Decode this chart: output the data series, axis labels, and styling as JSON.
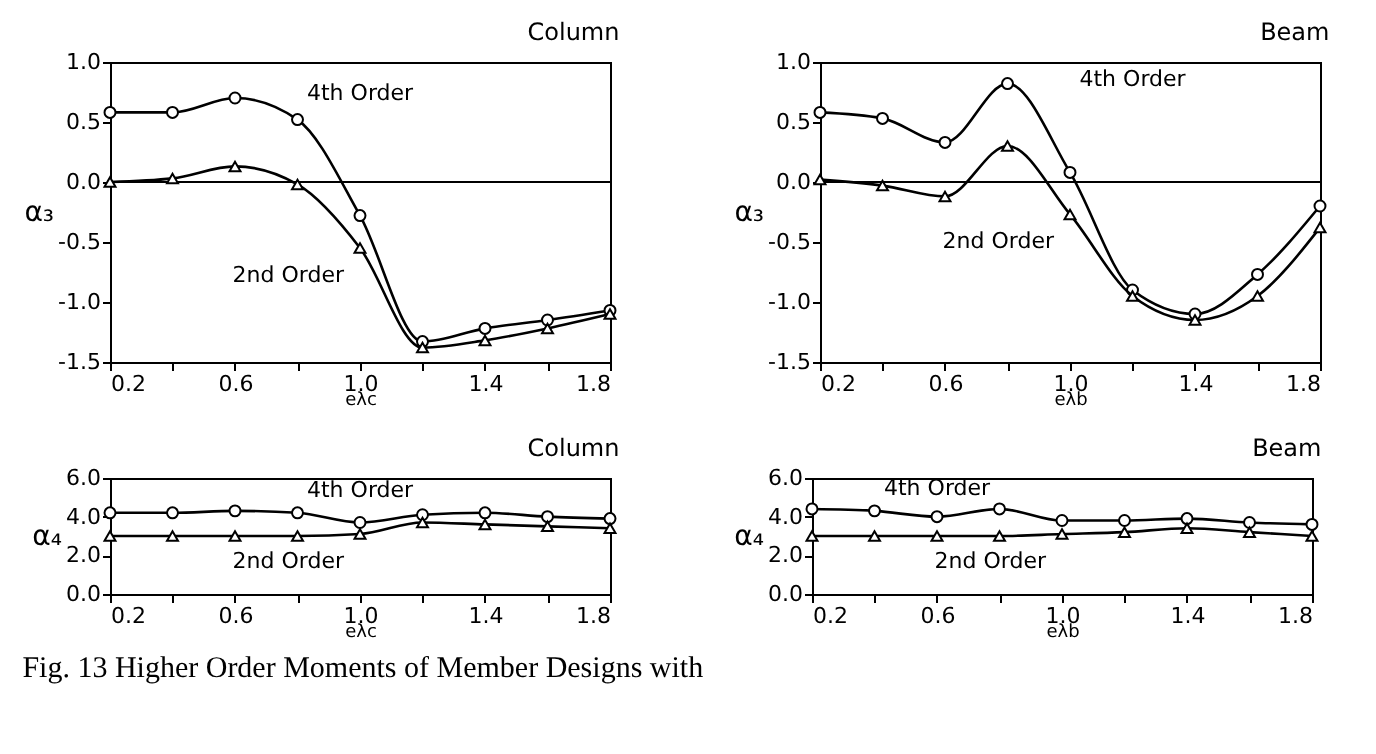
{
  "chart_data": [
    {
      "type": "line",
      "title": "Column",
      "xlabel": "eλc",
      "ylabel": "α₃",
      "x": [
        0.2,
        0.4,
        0.6,
        0.8,
        1.0,
        1.2,
        1.4,
        1.6,
        1.8
      ],
      "xlim": [
        0.2,
        1.8
      ],
      "xticks": [
        {
          "value": 0.2,
          "label": "0.2"
        },
        {
          "value": 0.4,
          "label": null
        },
        {
          "value": 0.6,
          "label": "0.6"
        },
        {
          "value": 0.8,
          "label": null
        },
        {
          "value": 1.0,
          "label": "1.0"
        },
        {
          "value": 1.2,
          "label": null
        },
        {
          "value": 1.4,
          "label": "1.4"
        },
        {
          "value": 1.6,
          "label": null
        },
        {
          "value": 1.8,
          "label": "1.8"
        }
      ],
      "ylim": [
        -1.5,
        1.0
      ],
      "yticks": [
        {
          "value": -1.5,
          "label": "-1.5"
        },
        {
          "value": -1.0,
          "label": "-1.0"
        },
        {
          "value": -0.5,
          "label": "-0.5"
        },
        {
          "value": 0,
          "label": "0.0"
        },
        {
          "value": 0.5,
          "label": "0.5"
        },
        {
          "value": 1.0,
          "label": "1.0"
        }
      ],
      "grid": false,
      "ref_lines": [
        {
          "axis": "y",
          "value": 0,
          "color": "#000000"
        }
      ],
      "series": [
        {
          "name": "4th Order",
          "color": "#000000",
          "marker": "circle",
          "values": [
            0.58,
            0.58,
            0.7,
            0.52,
            -0.28,
            -1.33,
            -1.22,
            -1.15,
            -1.07
          ]
        },
        {
          "name": "2nd Order",
          "color": "#000000",
          "marker": "triangle",
          "values": [
            0.0,
            0.03,
            0.13,
            -0.02,
            -0.55,
            -1.38,
            -1.32,
            -1.22,
            -1.1
          ]
        }
      ]
    },
    {
      "type": "line",
      "title": "Beam",
      "xlabel": "eλb",
      "ylabel": "α₃",
      "x": [
        0.2,
        0.4,
        0.6,
        0.8,
        1.0,
        1.2,
        1.4,
        1.6,
        1.8
      ],
      "xlim": [
        0.2,
        1.8
      ],
      "xticks": [
        {
          "value": 0.2,
          "label": "0.2"
        },
        {
          "value": 0.4,
          "label": null
        },
        {
          "value": 0.6,
          "label": "0.6"
        },
        {
          "value": 0.8,
          "label": null
        },
        {
          "value": 1.0,
          "label": "1.0"
        },
        {
          "value": 1.2,
          "label": null
        },
        {
          "value": 1.4,
          "label": "1.4"
        },
        {
          "value": 1.6,
          "label": null
        },
        {
          "value": 1.8,
          "label": "1.8"
        }
      ],
      "ylim": [
        -1.5,
        1.0
      ],
      "yticks": [
        {
          "value": -1.5,
          "label": "-1.5"
        },
        {
          "value": -1.0,
          "label": "-1.0"
        },
        {
          "value": -0.5,
          "label": "-0.5"
        },
        {
          "value": 0,
          "label": "0.0"
        },
        {
          "value": 0.5,
          "label": "0.5"
        },
        {
          "value": 1.0,
          "label": "1.0"
        }
      ],
      "grid": false,
      "ref_lines": [
        {
          "axis": "y",
          "value": 0,
          "color": "#000000"
        }
      ],
      "series": [
        {
          "name": "4th Order",
          "color": "#000000",
          "marker": "circle",
          "values": [
            0.58,
            0.53,
            0.33,
            0.82,
            0.08,
            -0.9,
            -1.1,
            -0.77,
            -0.2
          ]
        },
        {
          "name": "2nd Order",
          "color": "#000000",
          "marker": "triangle",
          "values": [
            0.02,
            -0.03,
            -0.12,
            0.3,
            -0.27,
            -0.95,
            -1.15,
            -0.95,
            -0.38
          ]
        }
      ]
    },
    {
      "type": "line",
      "title": "Column",
      "xlabel": "eλc",
      "ylabel": "α₄",
      "x": [
        0.2,
        0.4,
        0.6,
        0.8,
        1.0,
        1.2,
        1.4,
        1.6,
        1.8
      ],
      "xlim": [
        0.2,
        1.8
      ],
      "xticks": [
        {
          "value": 0.2,
          "label": "0.2"
        },
        {
          "value": 0.4,
          "label": null
        },
        {
          "value": 0.6,
          "label": "0.6"
        },
        {
          "value": 0.8,
          "label": null
        },
        {
          "value": 1.0,
          "label": "1.0"
        },
        {
          "value": 1.2,
          "label": null
        },
        {
          "value": 1.4,
          "label": "1.4"
        },
        {
          "value": 1.6,
          "label": null
        },
        {
          "value": 1.8,
          "label": "1.8"
        }
      ],
      "ylim": [
        0,
        6.0
      ],
      "yticks": [
        {
          "value": 0,
          "label": "0.0"
        },
        {
          "value": 2.0,
          "label": "2.0"
        },
        {
          "value": 4.0,
          "label": "4.0"
        },
        {
          "value": 6.0,
          "label": "6.0"
        }
      ],
      "grid": false,
      "series": [
        {
          "name": "4th Order",
          "color": "#000000",
          "marker": "circle",
          "values": [
            4.2,
            4.2,
            4.3,
            4.2,
            3.7,
            4.1,
            4.2,
            4.0,
            3.9
          ]
        },
        {
          "name": "2nd Order",
          "color": "#000000",
          "marker": "triangle",
          "values": [
            3.0,
            3.0,
            3.0,
            3.0,
            3.1,
            3.7,
            3.6,
            3.5,
            3.4
          ]
        }
      ]
    },
    {
      "type": "line",
      "title": "Beam",
      "xlabel": "eλb",
      "ylabel": "α₄",
      "x": [
        0.2,
        0.4,
        0.6,
        0.8,
        1.0,
        1.2,
        1.4,
        1.6,
        1.8
      ],
      "xlim": [
        0.2,
        1.8
      ],
      "xticks": [
        {
          "value": 0.2,
          "label": "0.2"
        },
        {
          "value": 0.4,
          "label": null
        },
        {
          "value": 0.6,
          "label": "0.6"
        },
        {
          "value": 0.8,
          "label": null
        },
        {
          "value": 1.0,
          "label": "1.0"
        },
        {
          "value": 1.2,
          "label": null
        },
        {
          "value": 1.4,
          "label": "1.4"
        },
        {
          "value": 1.6,
          "label": null
        },
        {
          "value": 1.8,
          "label": "1.8"
        }
      ],
      "ylim": [
        0,
        6.0
      ],
      "yticks": [
        {
          "value": 0,
          "label": "0.0"
        },
        {
          "value": 2.0,
          "label": "2.0"
        },
        {
          "value": 4.0,
          "label": "4.0"
        },
        {
          "value": 6.0,
          "label": "6.0"
        }
      ],
      "grid": false,
      "annotations": [
        "Fig. 13  Higher Order Moments of Member Designs with"
      ],
      "series": [
        {
          "name": "4th Order",
          "color": "#000000",
          "marker": "circle",
          "values": [
            4.4,
            4.3,
            4.0,
            4.4,
            3.8,
            3.8,
            3.9,
            3.7,
            3.6
          ]
        },
        {
          "name": "2nd Order",
          "color": "#000000",
          "marker": "triangle",
          "values": [
            3.0,
            3.0,
            3.0,
            3.0,
            3.1,
            3.2,
            3.4,
            3.2,
            3.0
          ]
        }
      ]
    }
  ]
}
